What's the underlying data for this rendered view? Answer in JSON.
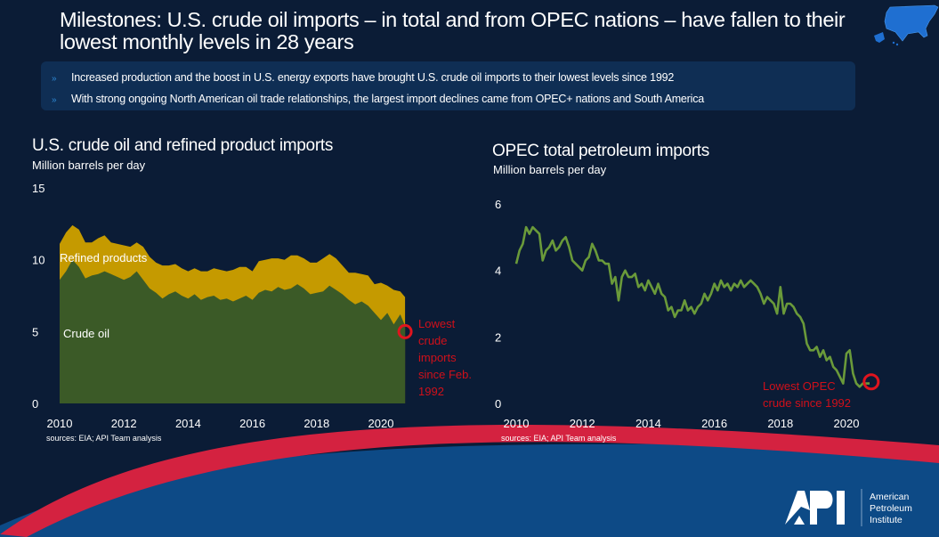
{
  "header": {
    "title": "Milestones:  U.S. crude oil imports – in total and from OPEC nations – have fallen to their lowest monthly levels in 28 years",
    "map_icon": "us-map-icon"
  },
  "bullets": [
    "Increased production and the boost in U.S. energy exports have brought U.S. crude oil imports to their lowest levels since 1992",
    "With strong ongoing North American oil trade relationships, the largest import declines came from OPEC+ nations and South America"
  ],
  "bullet_icon": "»",
  "footer": {
    "logo_text": "API",
    "org_lines": [
      "American",
      "Petroleum",
      "Institute"
    ]
  },
  "colors": {
    "background": "#0b1c36",
    "crude": "#3b5a27",
    "refined": "#c59a00",
    "opec_line": "#6a9a3a",
    "highlight": "#e0141e",
    "annotation": "#d0101a",
    "band_red": "#d42240",
    "band_blue": "#0d4a86"
  },
  "chart_data": [
    {
      "type": "area",
      "title": "U.S. crude oil and refined product imports",
      "ylabel": "Million barrels per day",
      "xlabel": "",
      "ylim": [
        0,
        15
      ],
      "yticks": [
        "0",
        "5",
        "10",
        "15"
      ],
      "xlim": [
        2010,
        2020.8
      ],
      "xticks": [
        "2010",
        "2012",
        "2014",
        "2016",
        "2018",
        "2020"
      ],
      "stacked": true,
      "source": "sources: EIA; API Team analysis",
      "x": [
        2010.0,
        2010.2,
        2010.4,
        2010.6,
        2010.8,
        2011.0,
        2011.2,
        2011.4,
        2011.6,
        2011.8,
        2012.0,
        2012.2,
        2012.4,
        2012.6,
        2012.8,
        2013.0,
        2013.2,
        2013.4,
        2013.6,
        2013.8,
        2014.0,
        2014.2,
        2014.4,
        2014.6,
        2014.8,
        2015.0,
        2015.2,
        2015.4,
        2015.6,
        2015.8,
        2016.0,
        2016.2,
        2016.4,
        2016.6,
        2016.8,
        2017.0,
        2017.2,
        2017.4,
        2017.6,
        2017.8,
        2018.0,
        2018.2,
        2018.4,
        2018.6,
        2018.8,
        2019.0,
        2019.2,
        2019.4,
        2019.6,
        2019.8,
        2020.0,
        2020.2,
        2020.4,
        2020.6,
        2020.75
      ],
      "series": [
        {
          "name": "Crude oil",
          "label": "Crude oil",
          "values": [
            8.6,
            9.2,
            10.0,
            9.5,
            8.7,
            8.9,
            9.0,
            9.2,
            9.0,
            8.8,
            8.6,
            8.8,
            9.2,
            8.6,
            8.0,
            7.7,
            7.3,
            7.6,
            7.8,
            7.5,
            7.3,
            7.6,
            7.2,
            7.4,
            7.5,
            7.2,
            7.3,
            7.1,
            7.3,
            7.5,
            7.2,
            7.7,
            7.9,
            7.8,
            8.1,
            7.9,
            8.0,
            8.3,
            8.0,
            7.6,
            7.7,
            7.8,
            8.2,
            7.9,
            7.6,
            7.2,
            6.9,
            7.1,
            6.8,
            6.3,
            5.8,
            6.3,
            5.5,
            6.2,
            5.4
          ]
        },
        {
          "name": "Refined products",
          "label": "Refined products",
          "values": [
            2.5,
            2.7,
            2.4,
            2.6,
            2.5,
            2.3,
            2.5,
            2.5,
            2.2,
            2.3,
            2.4,
            2.1,
            2.0,
            2.3,
            2.2,
            2.1,
            2.3,
            2.0,
            1.9,
            1.9,
            1.9,
            1.8,
            2.0,
            1.8,
            1.9,
            2.1,
            1.9,
            2.2,
            2.2,
            2.0,
            2.0,
            2.2,
            2.1,
            2.3,
            2.0,
            2.1,
            2.3,
            2.0,
            2.1,
            2.2,
            2.1,
            2.3,
            2.2,
            2.2,
            2.0,
            1.9,
            2.2,
            1.9,
            2.1,
            2.0,
            2.6,
            1.9,
            2.4,
            1.6,
            2.0
          ]
        }
      ],
      "annotation": {
        "text": [
          "Lowest",
          "crude",
          "imports",
          "since Feb.",
          "1992"
        ],
        "x": 2020.75,
        "y": 5.0
      }
    },
    {
      "type": "line",
      "title": "OPEC total petroleum imports",
      "ylabel": "Million barrels per day",
      "xlabel": "",
      "ylim": [
        0,
        6
      ],
      "yticks": [
        "0",
        "2",
        "4",
        "6"
      ],
      "xlim": [
        2010,
        2020.8
      ],
      "xticks": [
        "2010",
        "2012",
        "2014",
        "2016",
        "2018",
        "2020"
      ],
      "source": "sources: EIA; API Team analysis",
      "series": [
        {
          "name": "OPEC total petroleum imports",
          "x": [
            2010.0,
            2010.1,
            2010.2,
            2010.3,
            2010.4,
            2010.5,
            2010.6,
            2010.7,
            2010.8,
            2010.9,
            2011.0,
            2011.1,
            2011.2,
            2011.3,
            2011.4,
            2011.5,
            2011.6,
            2011.7,
            2011.8,
            2011.9,
            2012.0,
            2012.1,
            2012.2,
            2012.3,
            2012.4,
            2012.5,
            2012.6,
            2012.7,
            2012.8,
            2012.9,
            2013.0,
            2013.1,
            2013.2,
            2013.3,
            2013.4,
            2013.5,
            2013.6,
            2013.7,
            2013.8,
            2013.9,
            2014.0,
            2014.1,
            2014.2,
            2014.3,
            2014.4,
            2014.5,
            2014.6,
            2014.7,
            2014.8,
            2014.9,
            2015.0,
            2015.1,
            2015.2,
            2015.3,
            2015.4,
            2015.5,
            2015.6,
            2015.7,
            2015.8,
            2015.9,
            2016.0,
            2016.1,
            2016.2,
            2016.3,
            2016.4,
            2016.5,
            2016.6,
            2016.7,
            2016.8,
            2016.9,
            2017.0,
            2017.1,
            2017.2,
            2017.3,
            2017.4,
            2017.5,
            2017.6,
            2017.7,
            2017.8,
            2017.9,
            2018.0,
            2018.1,
            2018.2,
            2018.3,
            2018.4,
            2018.5,
            2018.6,
            2018.7,
            2018.8,
            2018.9,
            2019.0,
            2019.1,
            2019.2,
            2019.3,
            2019.4,
            2019.5,
            2019.6,
            2019.7,
            2019.8,
            2019.9,
            2020.0,
            2020.1,
            2020.2,
            2020.3,
            2020.4,
            2020.5,
            2020.6,
            2020.7
          ],
          "values": [
            4.2,
            4.6,
            4.8,
            5.3,
            5.1,
            5.3,
            5.2,
            5.1,
            4.3,
            4.6,
            4.7,
            4.9,
            4.6,
            4.7,
            4.9,
            5.0,
            4.7,
            4.3,
            4.2,
            4.1,
            4.0,
            4.3,
            4.4,
            4.8,
            4.6,
            4.3,
            4.3,
            4.2,
            4.2,
            3.6,
            3.8,
            3.1,
            3.8,
            4.0,
            3.8,
            3.8,
            3.9,
            3.5,
            3.6,
            3.4,
            3.7,
            3.5,
            3.3,
            3.6,
            3.3,
            3.2,
            2.8,
            2.9,
            2.6,
            2.8,
            2.8,
            3.1,
            2.8,
            2.9,
            2.7,
            2.9,
            3.0,
            3.3,
            3.1,
            3.3,
            3.6,
            3.4,
            3.7,
            3.5,
            3.6,
            3.4,
            3.6,
            3.5,
            3.7,
            3.5,
            3.6,
            3.7,
            3.6,
            3.5,
            3.3,
            3.0,
            3.2,
            3.1,
            3.0,
            2.7,
            3.5,
            2.7,
            3.0,
            3.0,
            2.9,
            2.7,
            2.6,
            2.4,
            1.8,
            1.6,
            1.6,
            1.7,
            1.4,
            1.6,
            1.3,
            1.4,
            1.1,
            1.0,
            0.8,
            0.6,
            1.5,
            1.6,
            0.9,
            0.6,
            0.5,
            0.6,
            0.6,
            0.6
          ]
        }
      ],
      "annotation": {
        "text": [
          "Lowest OPEC",
          "crude since 1992"
        ],
        "x": 2020.75,
        "y": 0.65
      }
    }
  ]
}
